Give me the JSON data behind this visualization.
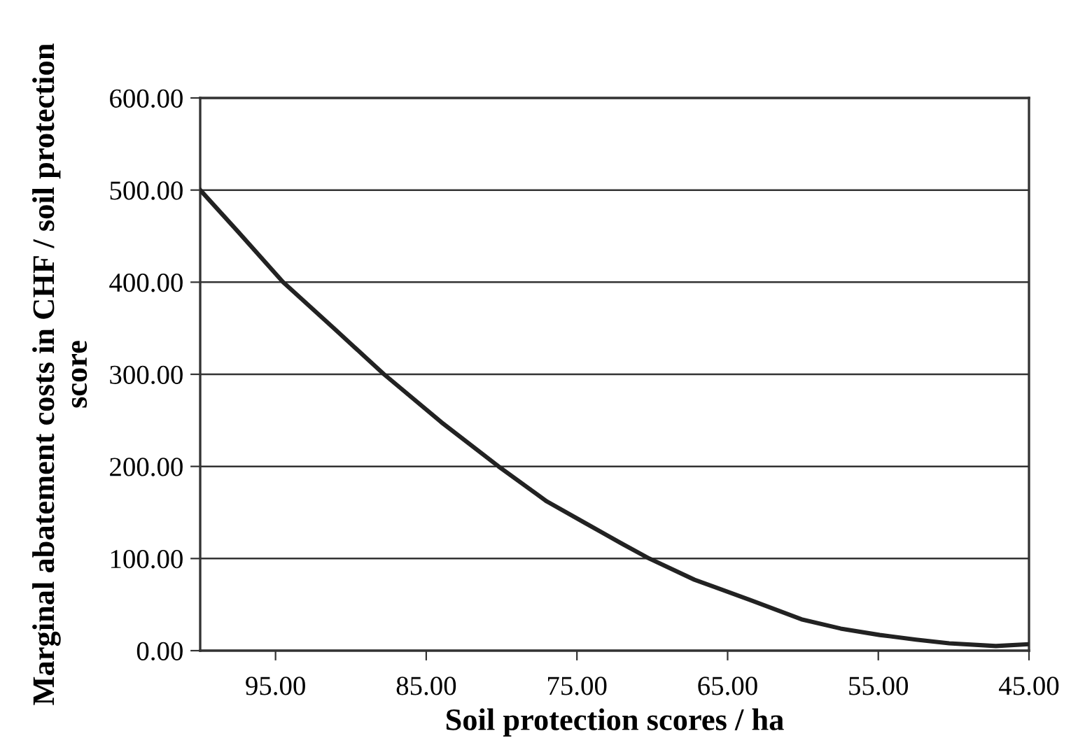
{
  "chart_data": {
    "type": "line",
    "xlabel": "Soil protection scores / ha",
    "ylabel": "Marginal abatement costs in CHF / soil protection\nscore",
    "x": [
      100,
      97.5,
      94.5,
      91,
      87.8,
      84,
      80.2,
      77,
      74.5,
      72,
      70.2,
      67.2,
      63.5,
      60.1,
      57.5,
      54.9,
      52.5,
      50.3,
      47.2,
      45
    ],
    "series": [
      {
        "color": "#222222",
        "values": [
          500,
          455,
          400,
          348,
          300,
          248,
          200,
          162,
          139,
          116,
          100,
          77,
          55,
          34,
          24,
          17,
          12,
          8,
          5,
          7
        ]
      }
    ],
    "xlim": [
      100,
      45
    ],
    "xticks": [
      {
        "value": 95,
        "label": "95.00"
      },
      {
        "value": 85,
        "label": "85.00"
      },
      {
        "value": 75,
        "label": "75.00"
      },
      {
        "value": 65,
        "label": "65.00"
      },
      {
        "value": 55,
        "label": "55.00"
      },
      {
        "value": 45,
        "label": "45.00"
      }
    ],
    "ylim": [
      0,
      600
    ],
    "yticks": [
      {
        "value": 0,
        "label": "0.00"
      },
      {
        "value": 100,
        "label": "100.00"
      },
      {
        "value": 200,
        "label": "200.00"
      },
      {
        "value": 300,
        "label": "300.00"
      },
      {
        "value": 400,
        "label": "400.00"
      },
      {
        "value": 500,
        "label": "500.00"
      },
      {
        "value": 600,
        "label": "600.00"
      }
    ],
    "grid": "y",
    "marker": "none",
    "line_style": "solid"
  }
}
